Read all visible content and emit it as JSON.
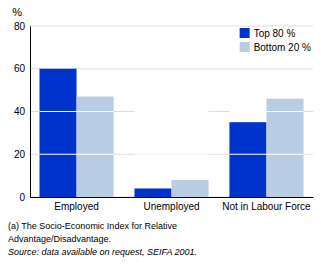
{
  "chart_data": {
    "type": "bar",
    "categories": [
      "Employed",
      "Unemployed",
      "Not in Labour Force"
    ],
    "series": [
      {
        "name": "Top 80 %",
        "color": "#0033cc",
        "values": [
          60,
          4,
          35
        ]
      },
      {
        "name": "Bottom 20 %",
        "color": "#b8cce4",
        "values": [
          47,
          8,
          46
        ]
      }
    ],
    "y_label": "%",
    "ylim": [
      0,
      80
    ],
    "yticks": [
      0,
      20,
      40,
      60,
      80
    ],
    "hlines": [
      20,
      40
    ],
    "grid": true,
    "legend": "upper right",
    "annotations": [
      "(a) The Socio-Economic Index for Relative",
      "Advantage/Disadvantage.",
      "Source: data available on request, SEIFA 2001."
    ]
  }
}
